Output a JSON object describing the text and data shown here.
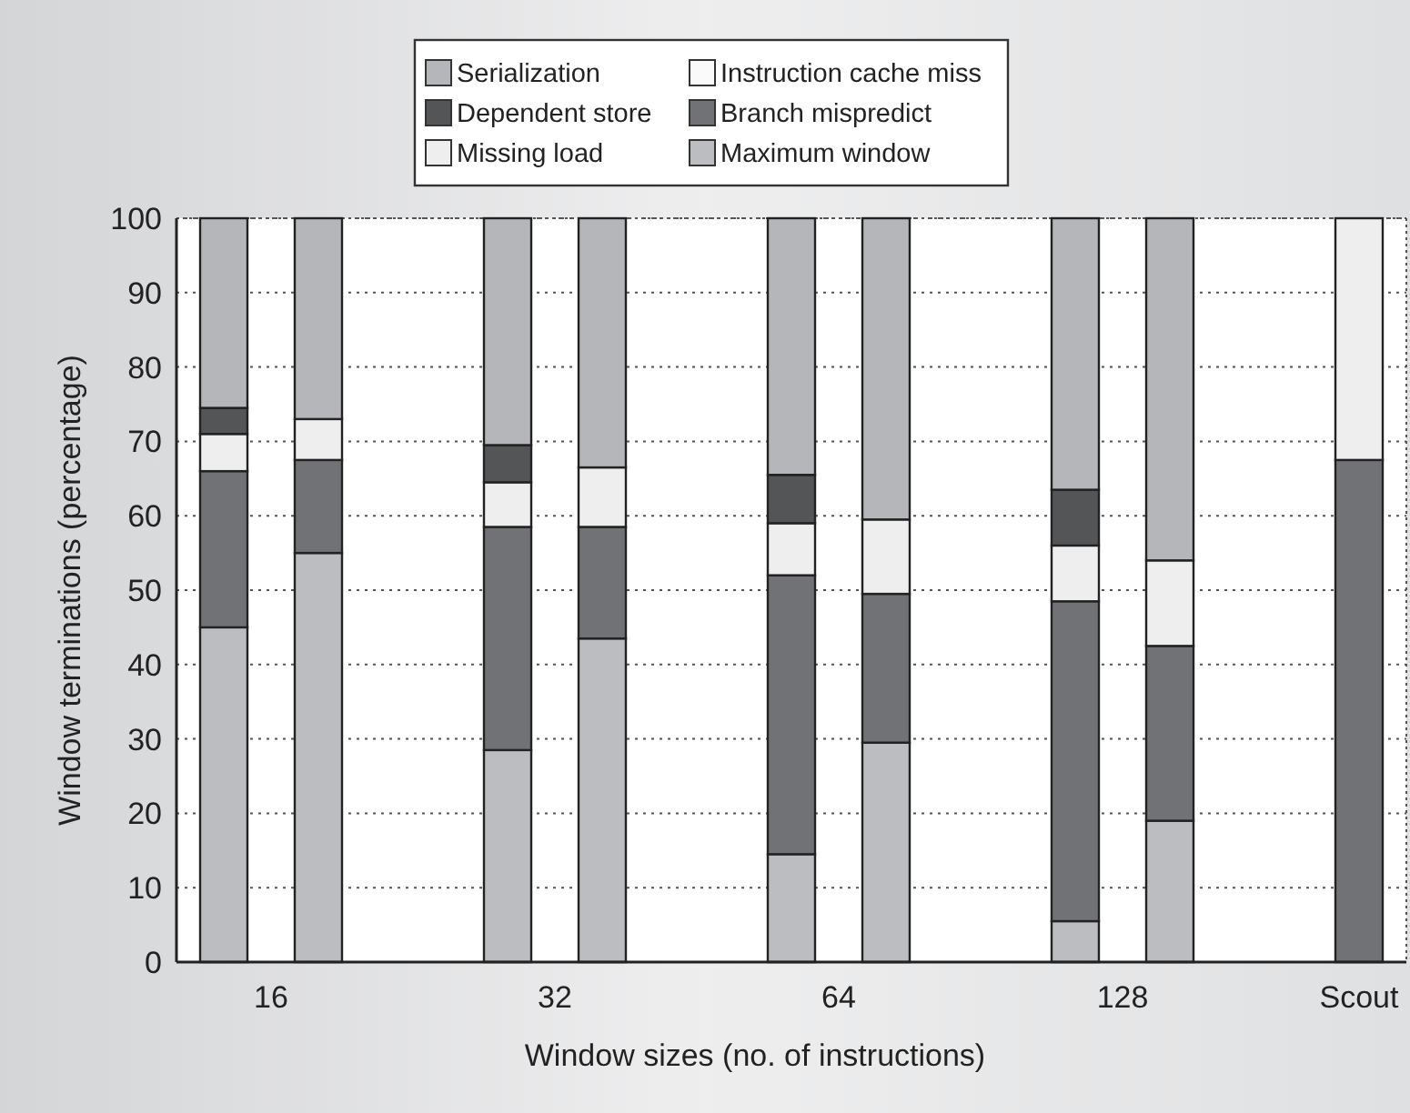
{
  "chart_data": {
    "type": "bar",
    "stacked": true,
    "xlabel": "Window sizes (no. of instructions)",
    "ylabel": "Window terminations (percentage)",
    "categories": [
      null,
      "16",
      null,
      null,
      null,
      null,
      null,
      "32",
      null,
      null,
      null,
      null,
      null,
      "64",
      null,
      null,
      null,
      null,
      null,
      "128",
      null,
      null,
      null,
      null,
      "Scout"
    ],
    "series": [
      {
        "name": "Maximum window",
        "color": "#bcbdc0",
        "values": [
          45,
          null,
          55,
          null,
          null,
          null,
          28.5,
          null,
          43.5,
          null,
          null,
          null,
          14.5,
          null,
          29.5,
          null,
          null,
          null,
          5.5,
          null,
          19,
          null,
          null,
          null,
          null
        ]
      },
      {
        "name": "Branch mispredict",
        "color": "#717275",
        "values": [
          21,
          null,
          12.5,
          null,
          null,
          null,
          30,
          null,
          15,
          null,
          null,
          null,
          37.5,
          null,
          20,
          null,
          null,
          null,
          43,
          null,
          23.5,
          null,
          null,
          null,
          67.5
        ]
      },
      {
        "name": "Instruction cache miss",
        "color": "#fafafa",
        "values": [
          null,
          null,
          null,
          null,
          null,
          null,
          null,
          null,
          null,
          null,
          null,
          null,
          null,
          null,
          null,
          null,
          null,
          null,
          null,
          null,
          null,
          null,
          null,
          null,
          null
        ]
      },
      {
        "name": "Missing load",
        "color": "#eeeeee",
        "values": [
          5,
          null,
          5.5,
          null,
          null,
          null,
          6,
          null,
          8,
          null,
          null,
          null,
          7,
          null,
          10,
          null,
          null,
          null,
          7.5,
          null,
          11.5,
          null,
          null,
          null,
          32.5
        ]
      },
      {
        "name": "Dependent store",
        "color": "#545557",
        "values": [
          3.5,
          null,
          null,
          null,
          null,
          null,
          5,
          null,
          null,
          null,
          null,
          null,
          6.5,
          null,
          null,
          null,
          null,
          null,
          7.5,
          null,
          null,
          null,
          null,
          null,
          null
        ]
      },
      {
        "name": "Serialization",
        "color": "#b5b6b9",
        "values": [
          25.5,
          null,
          27,
          null,
          null,
          null,
          30.5,
          null,
          33.5,
          null,
          null,
          null,
          34.5,
          null,
          40.5,
          null,
          null,
          null,
          36.5,
          null,
          46,
          null,
          null,
          null,
          null
        ]
      }
    ],
    "ylim": [
      0,
      100
    ],
    "yticks": [
      0,
      10,
      20,
      30,
      40,
      50,
      60,
      70,
      80,
      90,
      100
    ],
    "grid": "y",
    "legend": "top"
  }
}
